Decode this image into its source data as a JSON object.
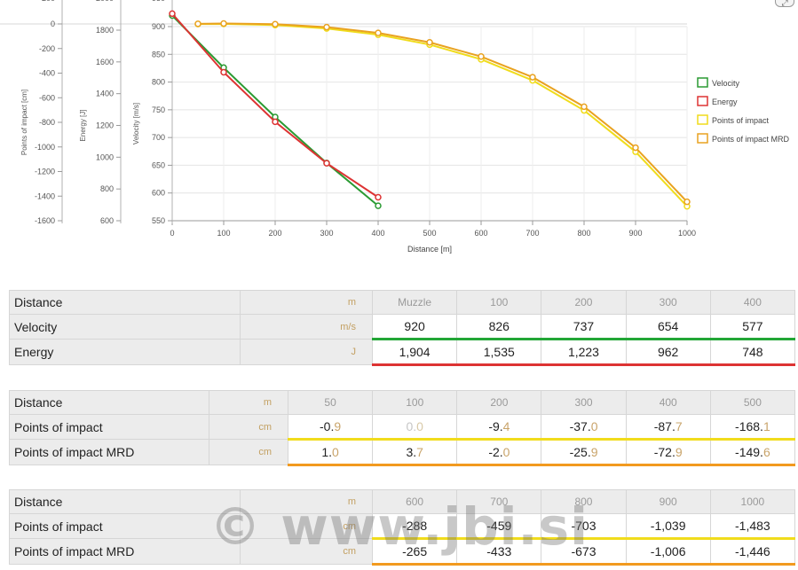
{
  "chart_data": {
    "type": "line",
    "xlabel": "Distance [m]",
    "x_ticks": [
      "0",
      "100",
      "200",
      "300",
      "400",
      "500",
      "600",
      "700",
      "800",
      "900",
      "1000"
    ],
    "xlim": [
      0,
      1000
    ],
    "y_axes": [
      {
        "label": "Points of impact [cm]",
        "ticks": [
          "0",
          "-200",
          "-400",
          "-600",
          "-800",
          "-1000",
          "-1200",
          "-1400",
          "-1600"
        ],
        "range": [
          -1650,
          200
        ]
      },
      {
        "label": "Energy [J]",
        "ticks": [
          "1800",
          "1600",
          "1400",
          "1200",
          "1000",
          "800",
          "600"
        ],
        "range": [
          530,
          2010
        ]
      },
      {
        "label": "Velocity [m/s]",
        "ticks": [
          "900",
          "850",
          "800",
          "750",
          "700",
          "650",
          "600",
          "550"
        ],
        "range": [
          550,
          935
        ]
      }
    ],
    "series": [
      {
        "name": "Velocity",
        "axis": "Velocity [m/s]",
        "color": "#2a9a32",
        "points": [
          [
            0,
            920
          ],
          [
            100,
            826
          ],
          [
            200,
            737
          ],
          [
            300,
            654
          ],
          [
            400,
            577
          ]
        ]
      },
      {
        "name": "Energy",
        "axis": "Energy [J]",
        "color": "#dd3333",
        "points": [
          [
            0,
            1904
          ],
          [
            100,
            1535
          ],
          [
            200,
            1223
          ],
          [
            300,
            962
          ],
          [
            400,
            748
          ]
        ]
      },
      {
        "name": "Points of impact",
        "axis": "Points of impact [cm]",
        "color": "#f0dc1c",
        "points": [
          [
            50,
            -0.9
          ],
          [
            100,
            0
          ],
          [
            200,
            -9.4
          ],
          [
            300,
            -37
          ],
          [
            400,
            -87.7
          ],
          [
            500,
            -168.1
          ],
          [
            600,
            -288
          ],
          [
            700,
            -459
          ],
          [
            800,
            -703
          ],
          [
            900,
            -1039
          ],
          [
            1000,
            -1483
          ]
        ]
      },
      {
        "name": "Points of impact MRD",
        "axis": "Points of impact [cm]",
        "color": "#e9a220",
        "points": [
          [
            50,
            1
          ],
          [
            100,
            3.7
          ],
          [
            200,
            -2
          ],
          [
            300,
            -25.9
          ],
          [
            400,
            -72.9
          ],
          [
            500,
            -149.6
          ],
          [
            600,
            -265
          ],
          [
            700,
            -433
          ],
          [
            800,
            -673
          ],
          [
            900,
            -1006
          ],
          [
            1000,
            -1446
          ]
        ]
      }
    ],
    "legend_position": "right",
    "grid": true
  },
  "table1": {
    "rows": [
      {
        "label": "Distance",
        "unit": "m",
        "values": [
          {
            "int": "Muzzle",
            "dec": ""
          },
          {
            "int": "100",
            "dec": ""
          },
          {
            "int": "200",
            "dec": ""
          },
          {
            "int": "300",
            "dec": ""
          },
          {
            "int": "400",
            "dec": ""
          }
        ]
      },
      {
        "label": "Velocity",
        "unit": "m/s",
        "values": [
          {
            "int": "920",
            "dec": ""
          },
          {
            "int": "826",
            "dec": ""
          },
          {
            "int": "737",
            "dec": ""
          },
          {
            "int": "654",
            "dec": ""
          },
          {
            "int": "577",
            "dec": ""
          }
        ]
      },
      {
        "label": "Energy",
        "unit": "J",
        "values": [
          {
            "int": "1,904",
            "dec": ""
          },
          {
            "int": "1,535",
            "dec": ""
          },
          {
            "int": "1,223",
            "dec": ""
          },
          {
            "int": "962",
            "dec": ""
          },
          {
            "int": "748",
            "dec": ""
          }
        ]
      }
    ]
  },
  "table2": {
    "rows": [
      {
        "label": "Distance",
        "unit": "m",
        "values": [
          {
            "int": "50",
            "dec": ""
          },
          {
            "int": "100",
            "dec": ""
          },
          {
            "int": "200",
            "dec": ""
          },
          {
            "int": "300",
            "dec": ""
          },
          {
            "int": "400",
            "dec": ""
          },
          {
            "int": "500",
            "dec": ""
          }
        ]
      },
      {
        "label": "Points of impact",
        "unit": "cm",
        "values": [
          {
            "int": "-0.",
            "dec": "9"
          },
          {
            "int": "0.",
            "dec": "0"
          },
          {
            "int": "-9.",
            "dec": "4"
          },
          {
            "int": "-37.",
            "dec": "0"
          },
          {
            "int": "-87.",
            "dec": "7"
          },
          {
            "int": "-168.",
            "dec": "1"
          }
        ]
      },
      {
        "label": "Points of impact MRD",
        "unit": "cm",
        "values": [
          {
            "int": "1.",
            "dec": "0"
          },
          {
            "int": "3.",
            "dec": "7"
          },
          {
            "int": "-2.",
            "dec": "0"
          },
          {
            "int": "-25.",
            "dec": "9"
          },
          {
            "int": "-72.",
            "dec": "9"
          },
          {
            "int": "-149.",
            "dec": "6"
          }
        ]
      }
    ]
  },
  "table3": {
    "rows": [
      {
        "label": "Distance",
        "unit": "m",
        "values": [
          {
            "int": "600",
            "dec": ""
          },
          {
            "int": "700",
            "dec": ""
          },
          {
            "int": "800",
            "dec": ""
          },
          {
            "int": "900",
            "dec": ""
          },
          {
            "int": "1000",
            "dec": ""
          }
        ]
      },
      {
        "label": "Points of impact",
        "unit": "cm",
        "values": [
          {
            "int": "-288",
            "dec": ""
          },
          {
            "int": "-459",
            "dec": ""
          },
          {
            "int": "-703",
            "dec": ""
          },
          {
            "int": "-1,039",
            "dec": ""
          },
          {
            "int": "-1,483",
            "dec": ""
          }
        ]
      },
      {
        "label": "Points of impact MRD",
        "unit": "cm",
        "values": [
          {
            "int": "-265",
            "dec": ""
          },
          {
            "int": "-433",
            "dec": ""
          },
          {
            "int": "-673",
            "dec": ""
          },
          {
            "int": "-1,006",
            "dec": ""
          },
          {
            "int": "-1,446",
            "dec": ""
          }
        ]
      }
    ]
  },
  "watermark": "© www.jbi.si",
  "fullscreen_icon": "expand-icon",
  "colors": {
    "green": "#22a636",
    "red": "#dd3333",
    "yellow": "#f1dc1c",
    "orange": "#f29a1f",
    "unit": "#c3a062"
  }
}
